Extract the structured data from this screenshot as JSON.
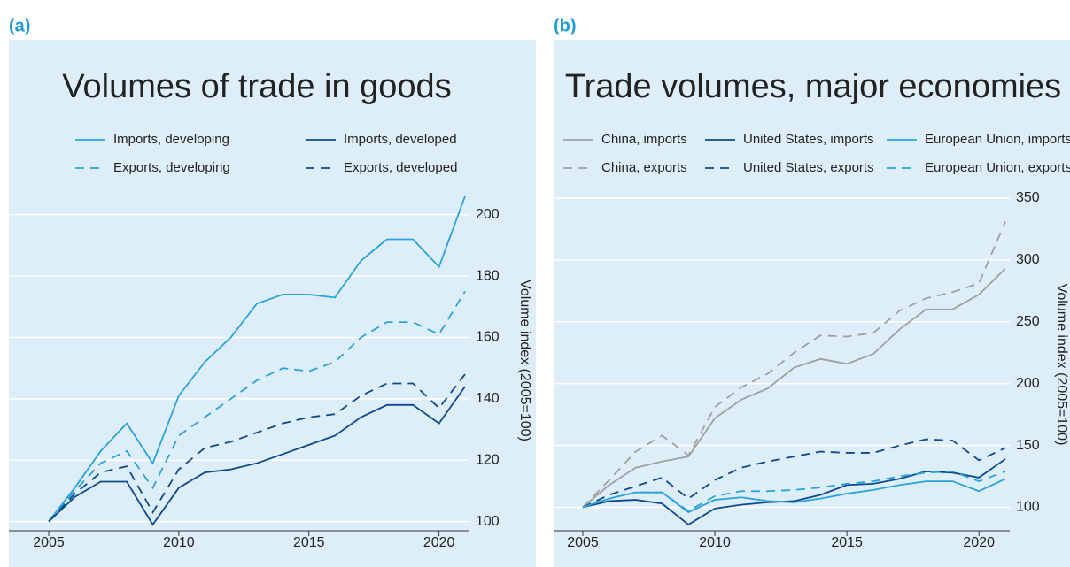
{
  "chart_data": [
    {
      "type": "line",
      "label": "(a)",
      "title": "Volumes of trade in goods",
      "y_label": "Volume index (2005=100)",
      "x": [
        2005,
        2006,
        2007,
        2008,
        2009,
        2010,
        2011,
        2012,
        2013,
        2014,
        2015,
        2016,
        2017,
        2018,
        2019,
        2020,
        2021
      ],
      "xlim": [
        2005,
        2021
      ],
      "xticks": [
        2005,
        2010,
        2015,
        2020
      ],
      "ylim": [
        97,
        208
      ],
      "yticks": [
        100,
        120,
        140,
        160,
        180,
        200
      ],
      "grid": true,
      "series": [
        {
          "name": "Imports, developing",
          "color": "#2aa3dc",
          "dashed": false,
          "values": [
            100,
            111,
            123,
            132,
            119,
            141,
            152,
            160,
            171,
            174,
            174,
            173,
            185,
            192,
            192,
            183,
            206
          ]
        },
        {
          "name": "Imports, developed",
          "color": "#0c4a8c",
          "dashed": false,
          "values": [
            100,
            108,
            113,
            113,
            99,
            111,
            116,
            117,
            119,
            122,
            125,
            128,
            134,
            138,
            138,
            132,
            144
          ]
        },
        {
          "name": "Exports, developing",
          "color": "#2aa3dc",
          "dashed": true,
          "values": [
            100,
            110,
            119,
            123,
            111,
            128,
            134,
            140,
            146,
            150,
            149,
            152,
            160,
            165,
            165,
            161,
            175
          ]
        },
        {
          "name": "Exports, developed",
          "color": "#0c4a8c",
          "dashed": true,
          "values": [
            100,
            109,
            116,
            118,
            103,
            117,
            124,
            126,
            129,
            132,
            134,
            135,
            141,
            145,
            145,
            137,
            148
          ]
        }
      ]
    },
    {
      "type": "line",
      "label": "(b)",
      "title": "Trade volumes, major economies",
      "y_label": "Volume index (2005=100)",
      "x": [
        2005,
        2006,
        2007,
        2008,
        2009,
        2010,
        2011,
        2012,
        2013,
        2014,
        2015,
        2016,
        2017,
        2018,
        2019,
        2020,
        2021
      ],
      "xlim": [
        2005,
        2021
      ],
      "xticks": [
        2005,
        2010,
        2015,
        2020
      ],
      "ylim": [
        81,
        350
      ],
      "yticks": [
        100,
        150,
        200,
        250,
        300,
        350
      ],
      "grid": true,
      "series": [
        {
          "name": "China, imports",
          "color": "#a0a0a0",
          "dashed": false,
          "values": [
            100,
            118,
            132,
            137,
            141,
            172,
            187,
            196,
            213,
            220,
            216,
            224,
            244,
            260,
            260,
            272,
            293
          ]
        },
        {
          "name": "United States, imports",
          "color": "#0c4a8c",
          "dashed": false,
          "values": [
            100,
            105,
            106,
            103,
            86,
            99,
            102,
            104,
            105,
            110,
            118,
            119,
            123,
            129,
            128,
            124,
            139
          ]
        },
        {
          "name": "European Union, imports",
          "color": "#2aa3dc",
          "dashed": false,
          "values": [
            100,
            107,
            112,
            112,
            96,
            106,
            108,
            105,
            104,
            107,
            111,
            114,
            118,
            121,
            121,
            113,
            123
          ]
        },
        {
          "name": "China, exports",
          "color": "#a0a0a0",
          "dashed": true,
          "values": [
            100,
            122,
            145,
            158,
            142,
            181,
            197,
            208,
            225,
            239,
            238,
            241,
            259,
            269,
            274,
            281,
            331
          ]
        },
        {
          "name": "United States, exports",
          "color": "#0c4a8c",
          "dashed": true,
          "values": [
            100,
            110,
            117,
            124,
            107,
            122,
            132,
            137,
            141,
            145,
            144,
            144,
            150,
            155,
            154,
            138,
            148
          ]
        },
        {
          "name": "European Union, exports",
          "color": "#2aa3dc",
          "dashed": true,
          "values": [
            100,
            107,
            112,
            112,
            97,
            109,
            113,
            113,
            114,
            116,
            119,
            121,
            125,
            128,
            129,
            121,
            129
          ]
        }
      ]
    }
  ]
}
